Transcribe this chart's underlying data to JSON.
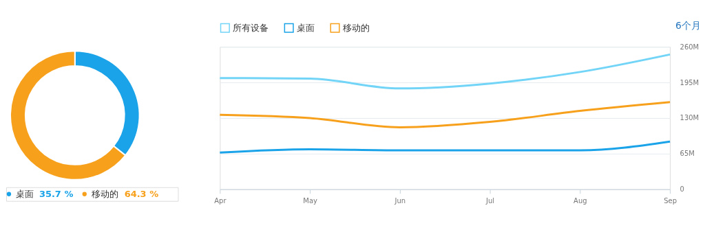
{
  "chart_data": [
    {
      "type": "donut",
      "categories": [
        "桌面",
        "移动的"
      ],
      "values": [
        35.7,
        64.3
      ],
      "colors": [
        "#1aa3e8",
        "#f7a01c"
      ],
      "value_labels": [
        "35.7 %",
        "64.3 %"
      ],
      "legend": "bottom"
    },
    {
      "type": "line",
      "categories": [
        "Apr",
        "May",
        "Jun",
        "Jul",
        "Aug",
        "Sep"
      ],
      "series": [
        {
          "name": "所有设备",
          "color": "#72d4f7",
          "values": [
            203,
            202,
            184,
            193,
            214,
            246
          ]
        },
        {
          "name": "桌面",
          "color": "#1aa3e8",
          "values": [
            67,
            73,
            71,
            71,
            71,
            87
          ]
        },
        {
          "name": "移动的",
          "color": "#f7a01c",
          "values": [
            136,
            130,
            113,
            123,
            143,
            159
          ]
        }
      ],
      "ylim": [
        0,
        260
      ],
      "yticks": [
        0,
        {
          "value": 65,
          "label": "65M"
        },
        {
          "value": 130,
          "label": "130M"
        },
        {
          "value": 195,
          "label": "195M"
        },
        {
          "value": 260,
          "label": "260M"
        }
      ],
      "grid": "y",
      "legend": "top left",
      "annotations": [
        "6个月"
      ]
    }
  ]
}
